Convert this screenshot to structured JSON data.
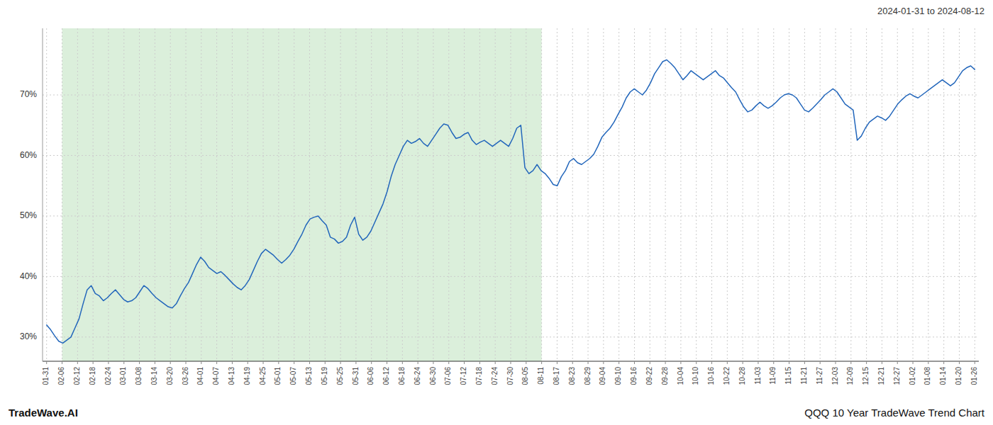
{
  "chart_data": {
    "type": "line",
    "title": "QQQ 10 Year TradeWave Trend Chart",
    "subtitle": "2024-01-31 to 2024-08-12",
    "annotations": [
      "TradeWave.AI"
    ],
    "color": "#2266bb",
    "grid": true,
    "shaded_range": [
      3.816667,
      122.133333
    ],
    "shaded_color": "#c8e6c8",
    "xlim": [
      -1,
      230
    ],
    "xticks": [
      {
        "value": 0,
        "label": "01-31"
      },
      {
        "value": 3.816667,
        "label": "02-06"
      },
      {
        "value": 7.633333,
        "label": "02-12"
      },
      {
        "value": 11.45,
        "label": "02-18"
      },
      {
        "value": 15.266667,
        "label": "02-24"
      },
      {
        "value": 19.083333,
        "label": "03-01"
      },
      {
        "value": 22.9,
        "label": "03-08"
      },
      {
        "value": 26.716667,
        "label": "03-14"
      },
      {
        "value": 30.533333,
        "label": "03-20"
      },
      {
        "value": 34.35,
        "label": "03-26"
      },
      {
        "value": 38.166667,
        "label": "04-01"
      },
      {
        "value": 41.983333,
        "label": "04-07"
      },
      {
        "value": 45.8,
        "label": "04-13"
      },
      {
        "value": 49.616667,
        "label": "04-19"
      },
      {
        "value": 53.433333,
        "label": "04-25"
      },
      {
        "value": 57.25,
        "label": "05-01"
      },
      {
        "value": 61.066667,
        "label": "05-07"
      },
      {
        "value": 64.883333,
        "label": "05-13"
      },
      {
        "value": 68.7,
        "label": "05-19"
      },
      {
        "value": 72.516667,
        "label": "05-25"
      },
      {
        "value": 76.333333,
        "label": "05-31"
      },
      {
        "value": 80.15,
        "label": "06-06"
      },
      {
        "value": 83.966667,
        "label": "06-12"
      },
      {
        "value": 87.783333,
        "label": "06-18"
      },
      {
        "value": 91.6,
        "label": "06-24"
      },
      {
        "value": 95.416667,
        "label": "06-30"
      },
      {
        "value": 99.233333,
        "label": "07-06"
      },
      {
        "value": 103.05,
        "label": "07-12"
      },
      {
        "value": 106.866667,
        "label": "07-18"
      },
      {
        "value": 110.683333,
        "label": "07-24"
      },
      {
        "value": 114.5,
        "label": "07-30"
      },
      {
        "value": 118.316667,
        "label": "08-05"
      },
      {
        "value": 122.133333,
        "label": "08-11"
      },
      {
        "value": 125.95,
        "label": "08-17"
      },
      {
        "value": 129.766667,
        "label": "08-23"
      },
      {
        "value": 133.583333,
        "label": "08-29"
      },
      {
        "value": 137.4,
        "label": "09-04"
      },
      {
        "value": 141.216667,
        "label": "09-10"
      },
      {
        "value": 145.033333,
        "label": "09-16"
      },
      {
        "value": 148.85,
        "label": "09-22"
      },
      {
        "value": 152.666667,
        "label": "09-28"
      },
      {
        "value": 156.483333,
        "label": "10-04"
      },
      {
        "value": 160.3,
        "label": "10-10"
      },
      {
        "value": 164.116667,
        "label": "10-16"
      },
      {
        "value": 167.933333,
        "label": "10-22"
      },
      {
        "value": 171.75,
        "label": "10-28"
      },
      {
        "value": 175.566667,
        "label": "11-03"
      },
      {
        "value": 179.383333,
        "label": "11-09"
      },
      {
        "value": 183.2,
        "label": "11-15"
      },
      {
        "value": 187.016667,
        "label": "11-21"
      },
      {
        "value": 190.833333,
        "label": "11-27"
      },
      {
        "value": 194.65,
        "label": "12-03"
      },
      {
        "value": 198.466667,
        "label": "12-09"
      },
      {
        "value": 202.283333,
        "label": "12-15"
      },
      {
        "value": 206.1,
        "label": "12-21"
      },
      {
        "value": 209.916667,
        "label": "12-27"
      },
      {
        "value": 213.733333,
        "label": "01-02"
      },
      {
        "value": 217.55,
        "label": "01-08"
      },
      {
        "value": 221.366667,
        "label": "01-14"
      },
      {
        "value": 225.183333,
        "label": "01-20"
      },
      {
        "value": 229,
        "label": "01-26"
      }
    ],
    "ylim": [
      26,
      81
    ],
    "yticks": [
      {
        "value": 30,
        "label": "30%"
      },
      {
        "value": 40,
        "label": "40%"
      },
      {
        "value": 50,
        "label": "50%"
      },
      {
        "value": 60,
        "label": "60%"
      },
      {
        "value": 70,
        "label": "70%"
      }
    ],
    "x": [
      0,
      1,
      2,
      3,
      4,
      5,
      6,
      7,
      8,
      9,
      10,
      11,
      12,
      13,
      14,
      15,
      16,
      17,
      18,
      19,
      20,
      21,
      22,
      23,
      24,
      25,
      26,
      27,
      28,
      29,
      30,
      31,
      32,
      33,
      34,
      35,
      36,
      37,
      38,
      39,
      40,
      41,
      42,
      43,
      44,
      45,
      46,
      47,
      48,
      49,
      50,
      51,
      52,
      53,
      54,
      55,
      56,
      57,
      58,
      59,
      60,
      61,
      62,
      63,
      64,
      65,
      66,
      67,
      68,
      69,
      70,
      71,
      72,
      73,
      74,
      75,
      76,
      77,
      78,
      79,
      80,
      81,
      82,
      83,
      84,
      85,
      86,
      87,
      88,
      89,
      90,
      91,
      92,
      93,
      94,
      95,
      96,
      97,
      98,
      99,
      100,
      101,
      102,
      103,
      104,
      105,
      106,
      107,
      108,
      109,
      110,
      111,
      112,
      113,
      114,
      115,
      116,
      117,
      118,
      119,
      120,
      121,
      122,
      123,
      124,
      125,
      126,
      127,
      128,
      129,
      130,
      131,
      132,
      133,
      134,
      135,
      136,
      137,
      138,
      139,
      140,
      141,
      142,
      143,
      144,
      145,
      146,
      147,
      148,
      149,
      150,
      151,
      152,
      153,
      154,
      155,
      156,
      157,
      158,
      159,
      160,
      161,
      162,
      163,
      164,
      165,
      166,
      167,
      168,
      169,
      170,
      171,
      172,
      173,
      174,
      175,
      176,
      177,
      178,
      179,
      180,
      181,
      182,
      183,
      184,
      185,
      186,
      187,
      188,
      189,
      190,
      191,
      192,
      193,
      194,
      195,
      196,
      197,
      198,
      199,
      200,
      201,
      202,
      203,
      204,
      205,
      206,
      207,
      208,
      209,
      210,
      211,
      212,
      213,
      214,
      215,
      216,
      217,
      218,
      219,
      220,
      221,
      222,
      223,
      224,
      225,
      226,
      227,
      228,
      229
    ],
    "values": [
      32.0,
      31.2,
      30.2,
      29.3,
      29.0,
      29.5,
      30.0,
      31.5,
      33.0,
      35.5,
      37.8,
      38.5,
      37.2,
      36.8,
      36.0,
      36.5,
      37.2,
      37.8,
      37.0,
      36.2,
      35.8,
      36.0,
      36.5,
      37.5,
      38.5,
      38.0,
      37.2,
      36.5,
      36.0,
      35.5,
      35.0,
      34.8,
      35.5,
      36.8,
      38.0,
      39.0,
      40.5,
      42.0,
      43.2,
      42.5,
      41.5,
      41.0,
      40.5,
      40.8,
      40.2,
      39.5,
      38.8,
      38.2,
      37.8,
      38.5,
      39.5,
      41.0,
      42.5,
      43.8,
      44.5,
      44.0,
      43.5,
      42.8,
      42.2,
      42.8,
      43.5,
      44.5,
      45.8,
      47.0,
      48.5,
      49.5,
      49.8,
      50.0,
      49.2,
      48.5,
      46.5,
      46.2,
      45.5,
      45.8,
      46.5,
      48.5,
      49.8,
      47.0,
      46.0,
      46.5,
      47.5,
      49.0,
      50.5,
      52.0,
      54.0,
      56.5,
      58.5,
      60.0,
      61.5,
      62.5,
      62.0,
      62.3,
      62.8,
      62.0,
      61.5,
      62.5,
      63.5,
      64.5,
      65.2,
      65.0,
      63.8,
      62.8,
      63.0,
      63.5,
      63.8,
      62.5,
      61.8,
      62.2,
      62.5,
      62.0,
      61.5,
      62.0,
      62.5,
      62.0,
      61.5,
      62.8,
      64.5,
      65.0,
      58.0,
      57.0,
      57.5,
      58.5,
      57.5,
      57.0,
      56.2,
      55.2,
      55.0,
      56.5,
      57.5,
      59.0,
      59.5,
      58.8,
      58.5,
      59.0,
      59.5,
      60.2,
      61.5,
      63.0,
      63.8,
      64.5,
      65.5,
      66.8,
      68.0,
      69.5,
      70.5,
      71.0,
      70.5,
      70.0,
      70.8,
      72.0,
      73.5,
      74.5,
      75.5,
      75.8,
      75.2,
      74.5,
      73.5,
      72.5,
      73.2,
      74.0,
      73.5,
      73.0,
      72.5,
      73.0,
      73.5,
      74.0,
      73.2,
      72.8,
      72.0,
      71.2,
      70.5,
      69.2,
      68.0,
      67.2,
      67.5,
      68.2,
      68.8,
      68.2,
      67.8,
      68.2,
      68.8,
      69.5,
      70.0,
      70.2,
      70.0,
      69.5,
      68.5,
      67.5,
      67.2,
      67.8,
      68.5,
      69.2,
      70.0,
      70.5,
      71.0,
      70.5,
      69.5,
      68.5,
      68.0,
      67.5,
      62.5,
      63.2,
      64.5,
      65.5,
      66.0,
      66.5,
      66.2,
      65.8,
      66.5,
      67.5,
      68.5,
      69.2,
      69.8,
      70.2,
      69.8,
      69.5,
      70.0,
      70.5,
      71.0,
      71.5,
      72.0,
      72.5,
      72.0,
      71.5,
      72.0,
      73.0,
      74.0,
      74.5,
      74.8,
      74.2
    ]
  }
}
